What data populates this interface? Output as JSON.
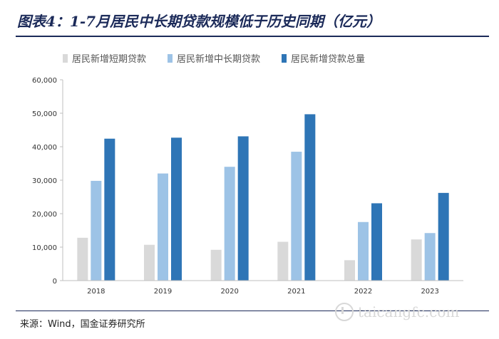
{
  "title": "图表4：1-7月居民中长期贷款规模低于历史同期（亿元）",
  "source": "来源：Wind，国金证券研究所",
  "watermark": "taicangfc.com",
  "chart_data": {
    "type": "bar",
    "categories": [
      "2018",
      "2019",
      "2020",
      "2021",
      "2022",
      "2023"
    ],
    "series": [
      {
        "name": "居民新增短期贷款",
        "color": "#d9d9d9",
        "values": [
          12800,
          10700,
          9200,
          11600,
          6100,
          12300
        ]
      },
      {
        "name": "居民新增中长期贷款",
        "color": "#9dc3e6",
        "values": [
          29800,
          32000,
          34000,
          38500,
          17500,
          14200
        ]
      },
      {
        "name": "居民新增贷款总量",
        "color": "#2e75b6",
        "values": [
          42400,
          42700,
          43100,
          49700,
          23100,
          26200
        ]
      }
    ],
    "yticks": [
      "0",
      "10,000",
      "20,000",
      "30,000",
      "40,000",
      "50,000",
      "60,000"
    ],
    "ylim": [
      0,
      60000
    ],
    "grid": false,
    "legend": "top"
  }
}
